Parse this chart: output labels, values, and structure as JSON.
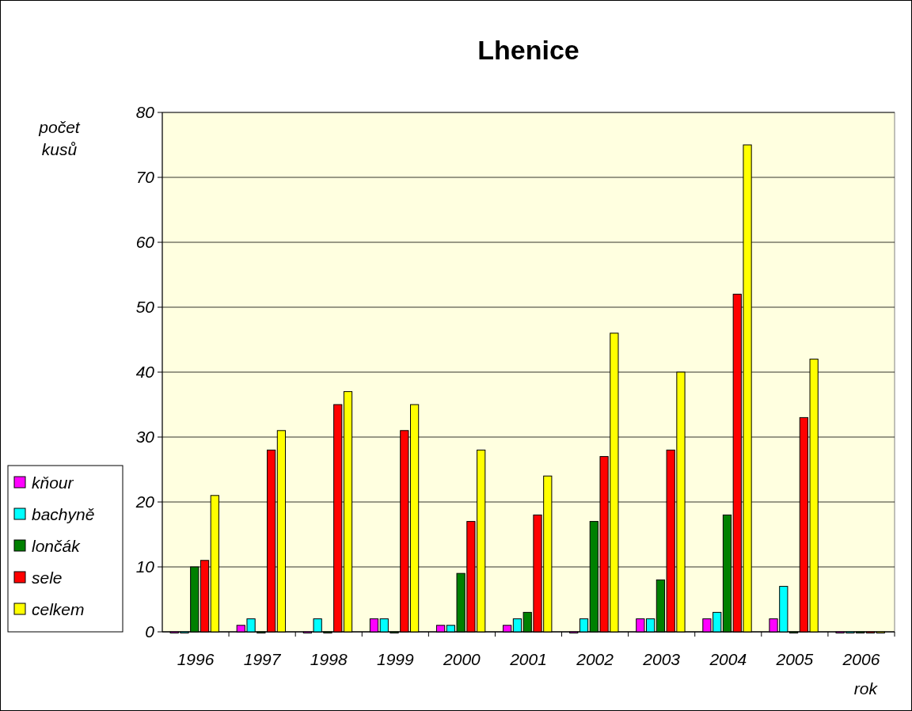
{
  "chart_data": {
    "type": "bar",
    "title": "Lhenice",
    "ylabel": "počet kusů",
    "xlabel": "rok",
    "categories": [
      "1996",
      "1997",
      "1998",
      "1999",
      "2000",
      "2001",
      "2002",
      "2003",
      "2004",
      "2005",
      "2006"
    ],
    "series": [
      {
        "name": "kňour",
        "color": "#ff00ff",
        "values": [
          0,
          1,
          0,
          2,
          1,
          1,
          0,
          2,
          2,
          2,
          0
        ]
      },
      {
        "name": "bachyně",
        "color": "#00ffff",
        "values": [
          0,
          2,
          2,
          2,
          1,
          2,
          2,
          2,
          3,
          7,
          0
        ]
      },
      {
        "name": "lončák",
        "color": "#008000",
        "values": [
          10,
          0,
          0,
          0,
          9,
          3,
          17,
          8,
          18,
          0,
          0
        ]
      },
      {
        "name": "sele",
        "color": "#ff0000",
        "values": [
          11,
          28,
          35,
          31,
          17,
          18,
          27,
          28,
          52,
          33,
          0
        ]
      },
      {
        "name": "celkem",
        "color": "#ffff00",
        "values": [
          21,
          31,
          37,
          35,
          28,
          24,
          46,
          40,
          75,
          42,
          0
        ]
      }
    ],
    "ylim": [
      0,
      80
    ],
    "yticks": [
      0,
      10,
      20,
      30,
      40,
      50,
      60,
      70,
      80
    ],
    "grid": "y",
    "legend": "bottom left"
  }
}
